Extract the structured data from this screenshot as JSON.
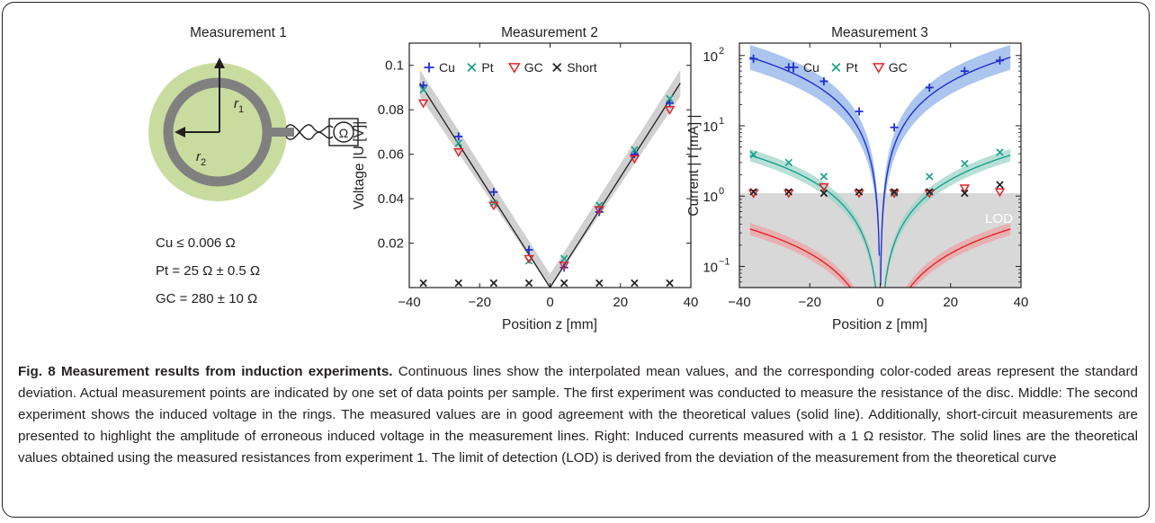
{
  "panel1": {
    "title": "Measurement 1",
    "r1_label": "r",
    "r1_sub": "1",
    "r2_label": "r",
    "r2_sub": "2",
    "ohm_symbol": "Ω",
    "results": [
      "Cu ≤ 0.006 Ω",
      "Pt = 25 Ω ± 0.5 Ω",
      "GC = 280 ± 10 Ω"
    ],
    "colors": {
      "disc": "#c9dc9f",
      "ring": "#808080"
    }
  },
  "chart_data": [
    {
      "type": "line",
      "title": "Measurement 2",
      "xlabel": "Position z [mm]",
      "ylabel": "Voltage |U [V]|",
      "xlim": [
        -40,
        40
      ],
      "ylim": [
        0,
        0.11
      ],
      "xticks": [
        -40,
        -20,
        0,
        20,
        40
      ],
      "xtick_labels": [
        "−40",
        "−20",
        "0",
        "20",
        "40"
      ],
      "yticks": [
        0.02,
        0.04,
        0.06,
        0.08,
        0.1
      ],
      "ytick_labels": [
        "0.02",
        "0.04",
        "0.06",
        "0.08",
        "0.1"
      ],
      "legend": "top",
      "theory": {
        "x": [
          -37,
          0,
          37
        ],
        "y": [
          0.092,
          0,
          0.092
        ],
        "band": 0.006
      },
      "series": [
        {
          "name": "Cu",
          "marker": "plus",
          "color": "#1f2fd0",
          "x": [
            -36,
            -26,
            -16,
            -6,
            4,
            14,
            24,
            34
          ],
          "y": [
            0.091,
            0.068,
            0.043,
            0.017,
            0.009,
            0.034,
            0.06,
            0.083
          ]
        },
        {
          "name": "Pt",
          "marker": "x",
          "color": "#1aa08a",
          "x": [
            -36,
            -26,
            -16,
            -6,
            4,
            14,
            24,
            34
          ],
          "y": [
            0.089,
            0.065,
            0.038,
            0.012,
            0.013,
            0.037,
            0.062,
            0.085
          ]
        },
        {
          "name": "GC",
          "marker": "triangle",
          "color": "#e0252a",
          "x": [
            -36,
            -26,
            -16,
            -6,
            4,
            14,
            24,
            34
          ],
          "y": [
            0.083,
            0.061,
            0.037,
            0.013,
            0.01,
            0.035,
            0.058,
            0.08
          ]
        },
        {
          "name": "Short",
          "marker": "x",
          "color": "#231f20",
          "x": [
            -36,
            -26,
            -16,
            -6,
            4,
            14,
            24,
            34
          ],
          "y": [
            0.0005,
            0.0005,
            0.0005,
            0.0005,
            0.0005,
            0.0005,
            0.0005,
            0.0005
          ]
        }
      ]
    },
    {
      "type": "line",
      "title": "Measurement 3",
      "xlabel": "Position z [mm]",
      "ylabel": "Current | I [mA] |",
      "xlim": [
        -40,
        40
      ],
      "ylim": [
        0.05,
        150
      ],
      "yscale": "log",
      "xticks": [
        -40,
        -20,
        0,
        20,
        40
      ],
      "xtick_labels": [
        "−40",
        "−20",
        "0",
        "20",
        "40"
      ],
      "yticks": [
        0.1,
        1,
        10,
        100
      ],
      "ytick_labels": [
        "10",
        "10",
        "10",
        "10"
      ],
      "ytick_exponents": [
        "−1",
        "0",
        "1",
        "2"
      ],
      "lod_label": "LOD",
      "lod_level": 1.1,
      "legend": "top",
      "theory": [
        {
          "name": "Cu",
          "color": "#1f2fd0",
          "band_color": "#8fb2e8",
          "band_factor": 1.5,
          "amp": 90.8,
          "z_ref": 36
        },
        {
          "name": "Pt",
          "color": "#1aa08a",
          "band_color": "#9fd6c8",
          "band_factor": 1.22,
          "amp": 3.68,
          "z_ref": 36
        },
        {
          "name": "GC",
          "color": "#e0252a",
          "band_color": "#eea3a3",
          "band_factor": 1.22,
          "amp": 0.328,
          "z_ref": 36
        }
      ],
      "series": [
        {
          "name": "Cu",
          "marker": "plus",
          "color": "#1f2fd0",
          "x": [
            -36,
            -26,
            -16,
            -6,
            4,
            14,
            24,
            34
          ],
          "y": [
            90,
            68,
            43,
            16,
            9.5,
            35,
            60,
            85
          ]
        },
        {
          "name": "Pt",
          "marker": "x",
          "color": "#1aa08a",
          "x": [
            -36,
            -26,
            -16,
            -6,
            4,
            14,
            24,
            34
          ],
          "y": [
            3.9,
            3.0,
            1.9,
            1.15,
            1.1,
            1.9,
            2.9,
            4.2
          ]
        },
        {
          "name": "GC",
          "marker": "triangle",
          "color": "#e0252a",
          "x": [
            -36,
            -26,
            -16,
            -6,
            4,
            14,
            24,
            34
          ],
          "y": [
            1.1,
            1.1,
            1.35,
            1.1,
            1.1,
            1.1,
            1.3,
            1.15
          ]
        },
        {
          "name": "Short",
          "marker": "x",
          "color": "#231f20",
          "x": [
            -36,
            -26,
            -16,
            -6,
            4,
            14,
            24,
            34
          ],
          "y": [
            1.15,
            1.15,
            1.1,
            1.15,
            1.15,
            1.15,
            1.1,
            1.45
          ]
        }
      ]
    }
  ],
  "caption": {
    "title": "Fig. 8 Measurement results from induction experiments.",
    "body": " Continuous lines show the interpolated mean values, and the corresponding color-coded areas represent the standard deviation. Actual measurement points are indicated by one set of data points per sample. The first experiment was conducted to measure the resistance of the disc. Middle: The second experiment shows the induced voltage in the rings. The measured values are in good agreement with the theoretical values (solid line). Additionally, short-circuit measurements are presented to highlight the amplitude of erroneous induced voltage in the measurement lines. Right: Induced currents measured with a 1 Ω resistor. The solid lines are the theoretical values obtained using the measured resistances from experiment 1. The limit of detection (LOD) is derived from the deviation of the measurement from the theoretical curve"
  }
}
